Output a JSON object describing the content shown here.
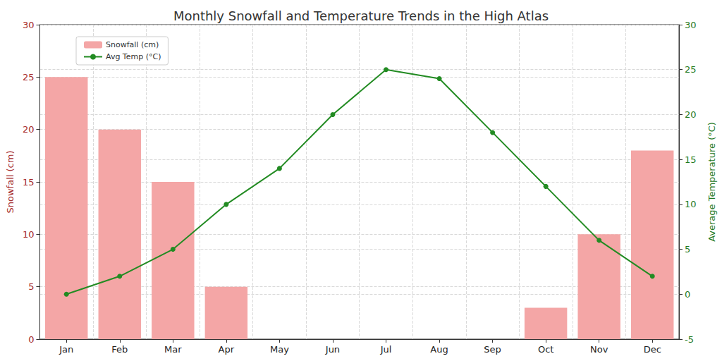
{
  "chart_data": {
    "type": "bar",
    "title": "Monthly Snowfall and Temperature Trends in the High Atlas",
    "categories": [
      "Jan",
      "Feb",
      "Mar",
      "Apr",
      "May",
      "Jun",
      "Jul",
      "Aug",
      "Sep",
      "Oct",
      "Nov",
      "Dec"
    ],
    "series": [
      {
        "name": "Snowfall (cm)",
        "type": "bar",
        "color": "#f4a6a6",
        "values": [
          25,
          20,
          15,
          5,
          0,
          0,
          0,
          0,
          0,
          3,
          10,
          18
        ]
      },
      {
        "name": "Avg Temp (°C)",
        "type": "line",
        "color": "#228b22",
        "axis": "y2",
        "marker": "circle",
        "values": [
          0,
          2,
          5,
          10,
          14,
          20,
          25,
          24,
          18,
          12,
          6,
          2
        ]
      }
    ],
    "ylabel": "Snowfall (cm)",
    "y2label": "Average Temperature (°C)",
    "ylim": [
      0,
      30
    ],
    "yticks": [
      0,
      5,
      10,
      15,
      20,
      25,
      30
    ],
    "y2lim": [
      -5,
      30
    ],
    "y2ticks": [
      -5,
      0,
      5,
      10,
      15,
      20,
      25,
      30
    ],
    "grid": true,
    "legend": "upper left"
  }
}
